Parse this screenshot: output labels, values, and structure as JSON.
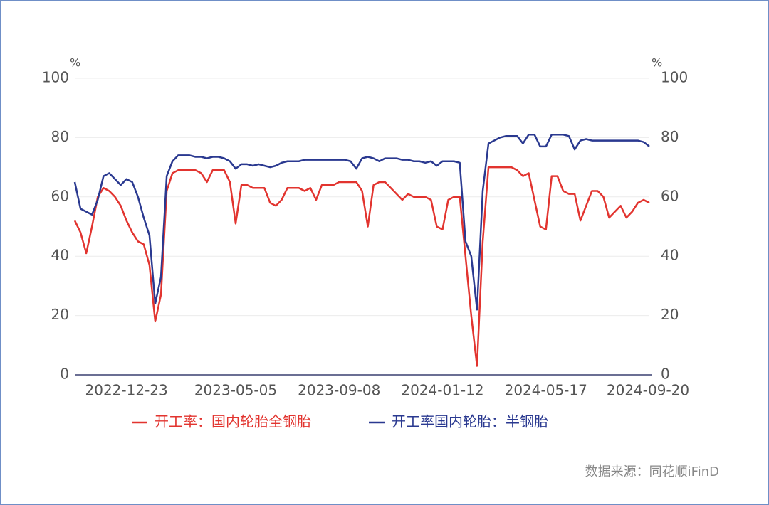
{
  "chart_data": {
    "type": "line",
    "y_unit": "%",
    "y2_unit": "%",
    "x": [
      "2022-10-21",
      "2022-10-28",
      "2022-11-04",
      "2022-11-11",
      "2022-11-18",
      "2022-11-25",
      "2022-12-02",
      "2022-12-09",
      "2022-12-16",
      "2022-12-23",
      "2022-12-30",
      "2023-01-06",
      "2023-01-13",
      "2023-01-20",
      "2023-01-27",
      "2023-02-03",
      "2023-02-10",
      "2023-02-17",
      "2023-02-24",
      "2023-03-03",
      "2023-03-10",
      "2023-03-17",
      "2023-03-24",
      "2023-03-31",
      "2023-04-07",
      "2023-04-14",
      "2023-04-21",
      "2023-04-28",
      "2023-05-05",
      "2023-05-12",
      "2023-05-19",
      "2023-05-26",
      "2023-06-02",
      "2023-06-09",
      "2023-06-16",
      "2023-06-23",
      "2023-06-30",
      "2023-07-07",
      "2023-07-14",
      "2023-07-21",
      "2023-07-28",
      "2023-08-04",
      "2023-08-11",
      "2023-08-18",
      "2023-08-25",
      "2023-09-01",
      "2023-09-08",
      "2023-09-15",
      "2023-09-22",
      "2023-09-29",
      "2023-10-06",
      "2023-10-13",
      "2023-10-20",
      "2023-10-27",
      "2023-11-03",
      "2023-11-10",
      "2023-11-17",
      "2023-11-24",
      "2023-12-01",
      "2023-12-08",
      "2023-12-15",
      "2023-12-22",
      "2023-12-29",
      "2024-01-05",
      "2024-01-12",
      "2024-01-19",
      "2024-01-26",
      "2024-02-02",
      "2024-02-09",
      "2024-02-16",
      "2024-02-23",
      "2024-03-01",
      "2024-03-08",
      "2024-03-15",
      "2024-03-22",
      "2024-03-29",
      "2024-04-05",
      "2024-04-12",
      "2024-04-19",
      "2024-04-26",
      "2024-05-03",
      "2024-05-10",
      "2024-05-17",
      "2024-05-24",
      "2024-05-31",
      "2024-06-07",
      "2024-06-14",
      "2024-06-21",
      "2024-06-28",
      "2024-07-05",
      "2024-07-12",
      "2024-07-19",
      "2024-07-26",
      "2024-08-02",
      "2024-08-09",
      "2024-08-16",
      "2024-08-23",
      "2024-08-30",
      "2024-09-06",
      "2024-09-13",
      "2024-09-20"
    ],
    "xticks": [
      "2022-12-23",
      "2023-05-05",
      "2023-09-08",
      "2024-01-12",
      "2024-05-17",
      "2024-09-20"
    ],
    "series": [
      {
        "name": "开工率：国内轮胎全钢胎",
        "color": "#e2342f",
        "values": [
          52,
          48,
          41,
          50,
          60,
          63,
          62,
          60,
          57,
          52,
          48,
          45,
          44,
          37,
          18,
          27,
          62,
          68,
          69,
          69,
          69,
          69,
          68,
          65,
          69,
          69,
          69,
          65,
          51,
          64,
          64,
          63,
          63,
          63,
          58,
          57,
          59,
          63,
          63,
          63,
          62,
          63,
          59,
          64,
          64,
          64,
          65,
          65,
          65,
          65,
          62,
          50,
          64,
          65,
          65,
          63,
          61,
          59,
          61,
          60,
          60,
          60,
          59,
          50,
          49,
          59,
          60,
          60,
          40,
          20,
          3,
          45,
          70,
          70,
          70,
          70,
          70,
          69,
          67,
          68,
          59,
          50,
          49,
          67,
          67,
          62,
          61,
          61,
          52,
          57,
          62,
          62,
          60,
          53,
          55,
          57,
          53,
          55,
          58,
          59,
          58
        ]
      },
      {
        "name": "开工率国内轮胎：半钢胎",
        "color": "#2a3990",
        "values": [
          65,
          56,
          55,
          54,
          59,
          67,
          68,
          66,
          64,
          66,
          65,
          60,
          53,
          47,
          24,
          33,
          67,
          72,
          74,
          74,
          74,
          73.5,
          73.5,
          73,
          73.5,
          73.5,
          73,
          72,
          69.5,
          71,
          71,
          70.5,
          71,
          70.5,
          70,
          70.5,
          71.5,
          72,
          72,
          72,
          72.5,
          72.5,
          72.5,
          72.5,
          72.5,
          72.5,
          72.5,
          72.5,
          72,
          69.5,
          73,
          73.5,
          73,
          72,
          73,
          73,
          73,
          72.5,
          72.5,
          72,
          72,
          71.5,
          72,
          70.5,
          72,
          72,
          72,
          71.5,
          45,
          40,
          22,
          62,
          78,
          79,
          80,
          80.5,
          80.5,
          80.5,
          78,
          81,
          81,
          77,
          77,
          81,
          81,
          81,
          80.5,
          76,
          79,
          79.5,
          79,
          79,
          79,
          79,
          79,
          79,
          79,
          79,
          79,
          78.5,
          77
        ]
      }
    ],
    "ylim": [
      0,
      100
    ],
    "yticks": [
      0,
      20,
      40,
      60,
      80,
      100
    ],
    "y2lim": [
      0,
      100
    ],
    "y2ticks": [
      0,
      20,
      40,
      60,
      80,
      100
    ],
    "grid": true,
    "legend": "bottom",
    "source": "数据来源：同花顺iFinD"
  }
}
